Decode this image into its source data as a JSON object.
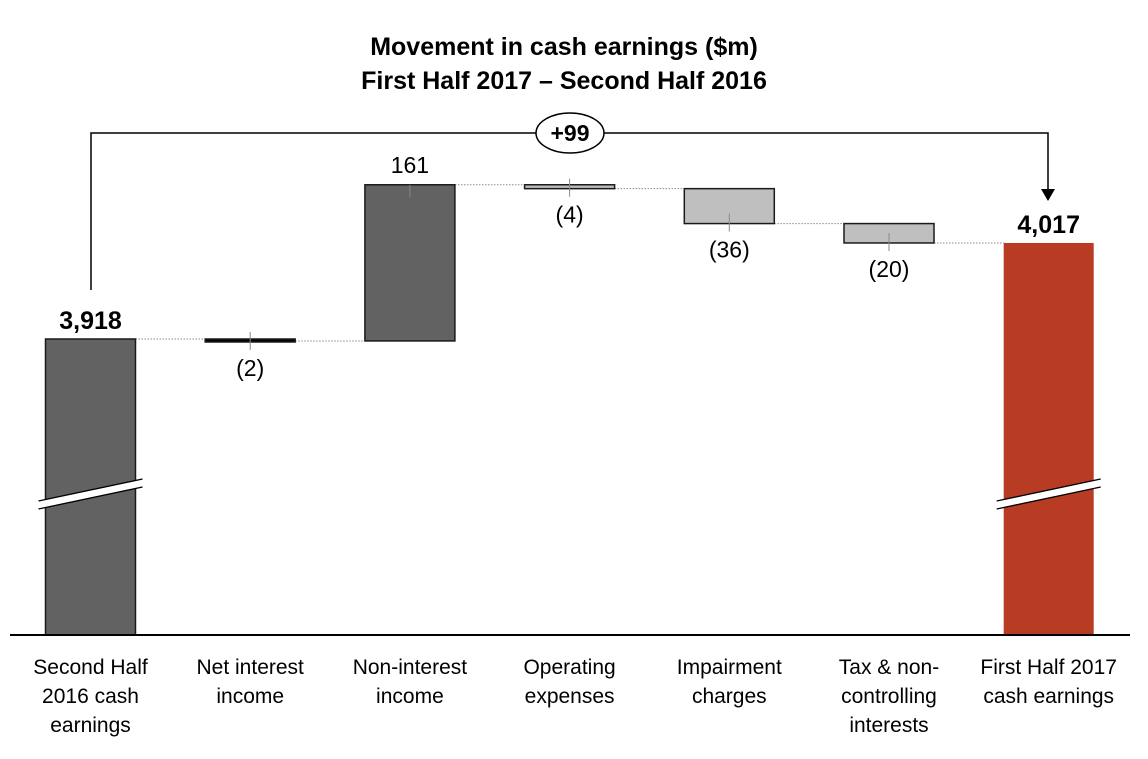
{
  "chart_data": {
    "type": "waterfall",
    "title": "Movement in cash earnings ($m)",
    "subtitle": "First Half 2017 – Second Half 2016",
    "categories": [
      [
        "Second Half",
        "2016 cash",
        "earnings"
      ],
      [
        "Net interest",
        "income"
      ],
      [
        "Non-interest",
        "income"
      ],
      [
        "Operating",
        "expenses"
      ],
      [
        "Impairment",
        "charges"
      ],
      [
        "Tax & non-",
        "controlling",
        "interests"
      ],
      [
        "First Half 2017",
        "cash earnings"
      ]
    ],
    "values": [
      3918,
      -2,
      161,
      -4,
      -36,
      -20,
      4017
    ],
    "kinds": [
      "total",
      "delta",
      "delta",
      "delta",
      "delta",
      "delta",
      "total"
    ],
    "value_labels": [
      "3,918",
      "(2)",
      "161",
      "(4)",
      "(36)",
      "(20)",
      "4,017"
    ],
    "net_change_label": "+99",
    "axis_broken": true,
    "colors": {
      "total": "#626262",
      "increase": "#626262",
      "decrease": "#bfbfbf",
      "final_total": "#b83c24",
      "outline": "#1a1a1a",
      "connector": "#8a8a8a"
    }
  }
}
